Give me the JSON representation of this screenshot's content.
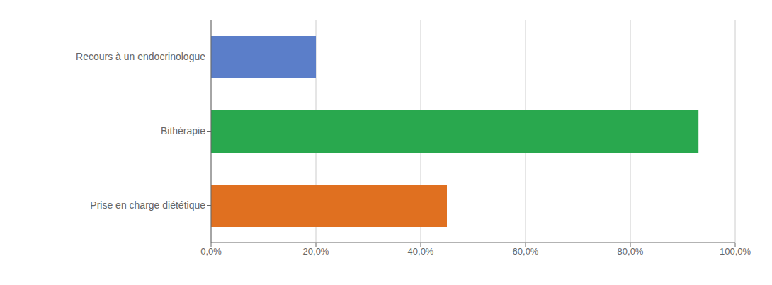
{
  "chart_data": {
    "type": "bar",
    "orientation": "horizontal",
    "categories": [
      "Prise en charge diététique",
      "Bithérapie",
      "Recours à un endocrinologue"
    ],
    "values": [
      0.45,
      0.93,
      0.2
    ],
    "colors": [
      "#E07020",
      "#29A84E",
      "#5B7EC9"
    ],
    "xlim": [
      0,
      1.0
    ],
    "xticks": [
      {
        "value": 0.0,
        "label": "0,0%"
      },
      {
        "value": 0.2,
        "label": "20,0%"
      },
      {
        "value": 0.4,
        "label": "40,0%"
      },
      {
        "value": 0.6,
        "label": "60,0%"
      },
      {
        "value": 0.8,
        "label": "80,0%"
      },
      {
        "value": 1.0,
        "label": "100,0%"
      }
    ],
    "grid": true
  }
}
